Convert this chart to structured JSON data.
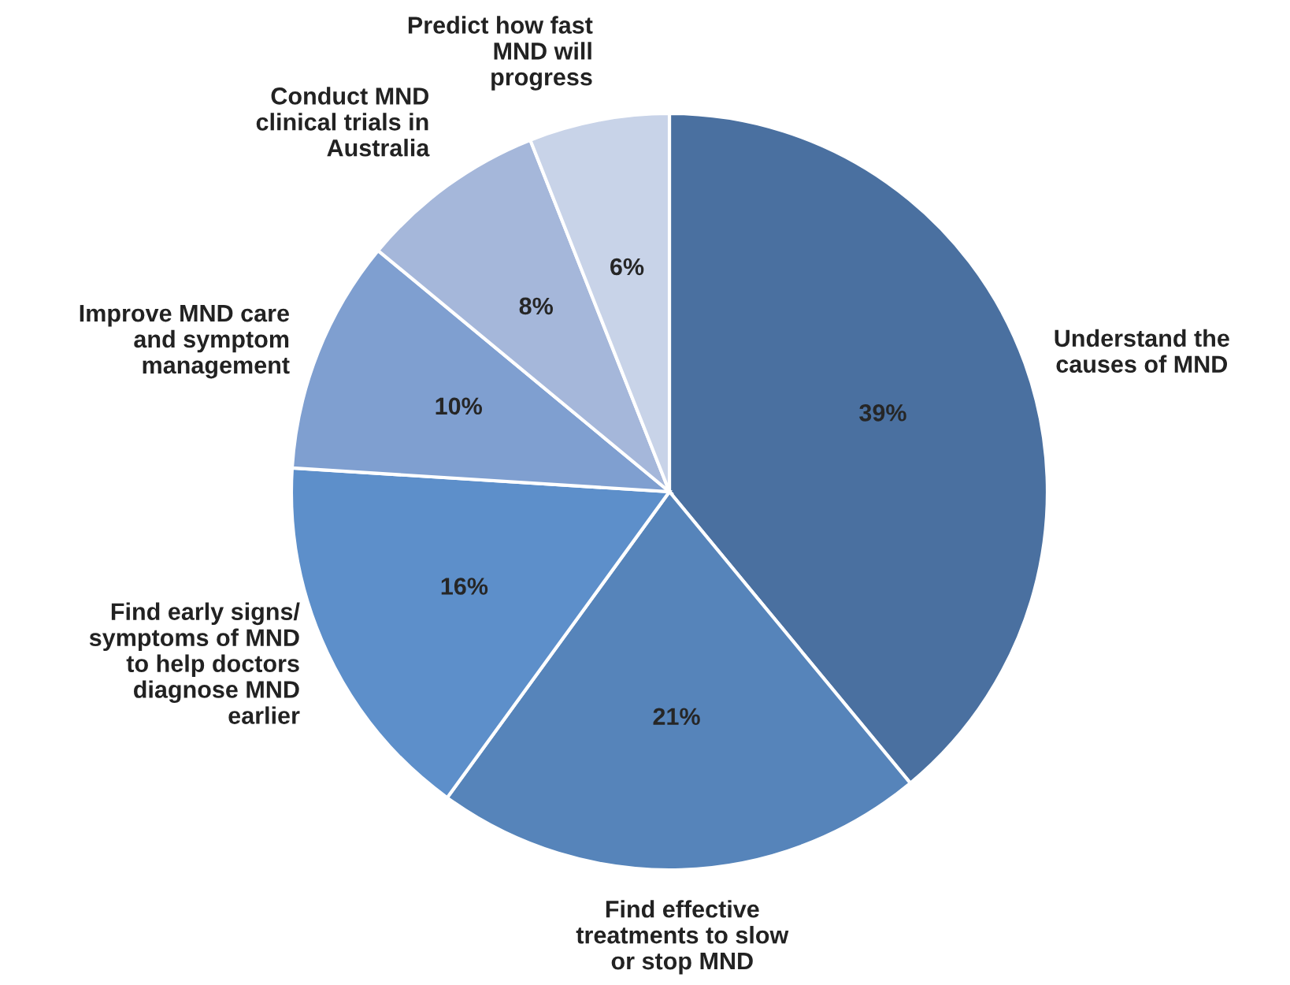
{
  "chart_data": {
    "type": "pie",
    "categories": [
      "Understand the\ncauses of MND",
      "Find effective\ntreatments to slow\nor stop MND",
      "Find early signs/\nsymptoms of MND\nto help doctors\ndiagnose MND\nearlier",
      "Improve MND care\nand symptom\nmanagement",
      "Conduct MND\nclinical trials in\nAustralia",
      "Predict how fast\nMND will\nprogress"
    ],
    "values": [
      39,
      21,
      16,
      10,
      8,
      6
    ],
    "value_labels": [
      "39%",
      "21%",
      "16%",
      "10%",
      "8%",
      "6%"
    ],
    "colors": [
      "#4a70a0",
      "#5684ba",
      "#5d8fca",
      "#7f9fd0",
      "#a5b7da",
      "#c8d3e8"
    ],
    "legend": false
  }
}
